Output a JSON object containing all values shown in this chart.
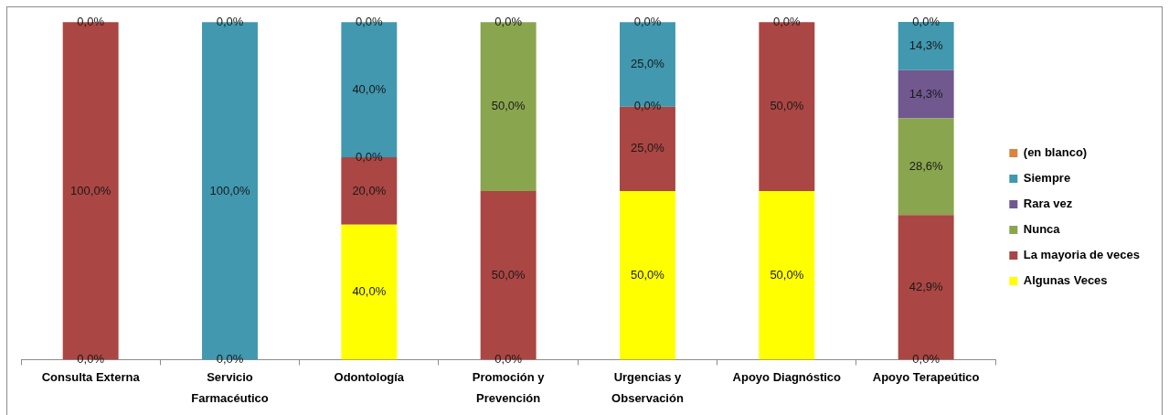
{
  "chart_data": {
    "type": "bar",
    "stacked": true,
    "legend": "right",
    "tick_labels": "x",
    "categories": [
      "Consulta Externa",
      "Servicio Farmacéutico",
      "Odontología",
      "Promoción y Prevención",
      "Urgencias y Observación",
      "Apoyo Diagnóstico",
      "Apoyo Terapeútico"
    ],
    "series": [
      {
        "name": "Algunas Veces",
        "color": "#ffff00",
        "values": [
          0,
          0,
          40,
          0,
          50,
          50,
          0
        ],
        "value_labels": [
          null,
          null,
          "40,0%",
          null,
          "50,0%",
          "50,0%",
          null
        ]
      },
      {
        "name": "La mayoria de veces",
        "color": "#aa4643",
        "values": [
          100,
          null,
          20,
          50,
          25,
          50,
          42.9
        ],
        "value_labels": [
          "100,0%",
          null,
          "20,0%",
          "50,0%",
          "25,0%",
          "50,0%",
          "42,9%"
        ]
      },
      {
        "name": "Nunca",
        "color": "#89a54e",
        "values": [
          null,
          null,
          0,
          50,
          0,
          null,
          28.6
        ],
        "value_labels": [
          null,
          null,
          null,
          "50,0%",
          null,
          null,
          "28,6%"
        ]
      },
      {
        "name": "Rara vez",
        "color": "#71588f",
        "values": [
          null,
          null,
          null,
          null,
          null,
          null,
          14.3
        ],
        "value_labels": [
          null,
          null,
          null,
          null,
          null,
          null,
          "14,3%"
        ]
      },
      {
        "name": "Siempre",
        "color": "#4198af",
        "values": [
          null,
          100,
          40,
          null,
          25,
          null,
          14.3
        ],
        "value_labels": [
          null,
          "100,0%",
          "40,0%",
          null,
          "25,0%",
          null,
          "14,3%"
        ]
      },
      {
        "name": "(en blanco)",
        "color": "#db843d",
        "values": [
          0,
          0,
          0,
          0,
          0,
          0,
          0
        ],
        "value_labels": [
          "0,0%",
          "0,0%",
          "0,0%",
          "0,0%",
          "0,0%",
          "0,0%",
          "0,0%"
        ]
      }
    ],
    "annotations": [
      {
        "text": "0,0%",
        "x": "Consulta Externa",
        "y": 0
      },
      {
        "text": "0,0%",
        "x": "Servicio Farmacéutico",
        "y": 0
      },
      {
        "text": "0,0%",
        "x": "Odontología",
        "y": 60
      },
      {
        "text": "0,0%",
        "x": "Promoción y Prevención",
        "y": 0
      },
      {
        "text": "0,0%",
        "x": "Urgencias y Observación",
        "y": 75
      },
      {
        "text": "0,0%",
        "x": "Apoyo Terapeútico",
        "y": 0
      }
    ]
  }
}
